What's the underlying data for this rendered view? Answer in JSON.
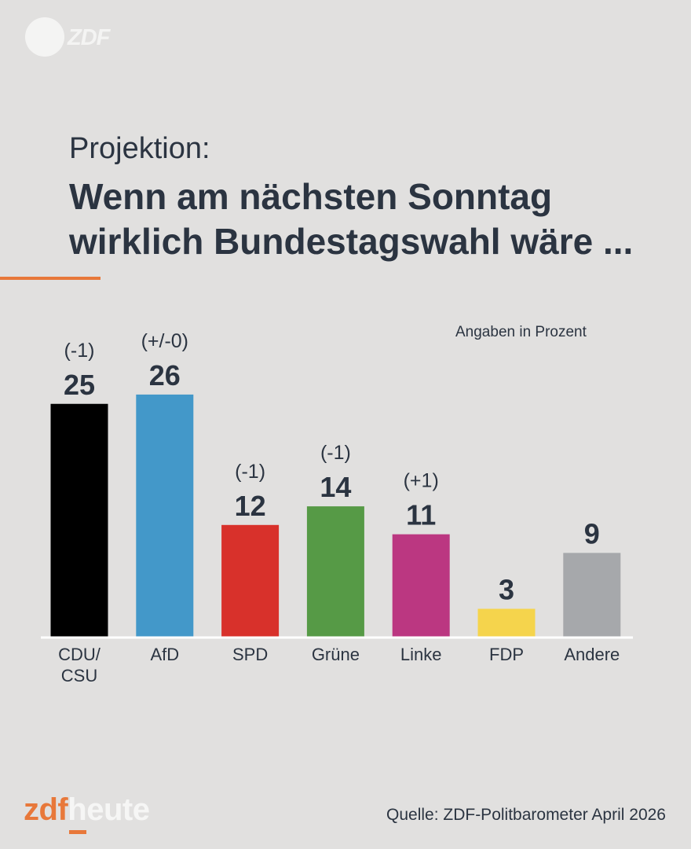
{
  "logo_top": {
    "text": "ZDF"
  },
  "header": {
    "kicker": "Projektion:",
    "headline": "Wenn am nächsten Sonntag wirklich Bundestagswahl wäre ..."
  },
  "unit_note": "Angaben in Prozent",
  "chart_data": {
    "type": "bar",
    "title": "Wenn am nächsten Sonntag wirklich Bundestagswahl wäre ...",
    "ylabel": "Angaben in Prozent",
    "ylim": [
      0,
      30
    ],
    "categories": [
      [
        "CDU/",
        "CSU"
      ],
      [
        "AfD"
      ],
      [
        "SPD"
      ],
      [
        "Grüne"
      ],
      [
        "Linke"
      ],
      [
        "FDP"
      ],
      [
        "Andere"
      ]
    ],
    "values": [
      25,
      26,
      12,
      14,
      11,
      3,
      9
    ],
    "changes": [
      "(-1)",
      "(+/-0)",
      "(-1)",
      "(-1)",
      "(+1)",
      "",
      ""
    ],
    "colors": [
      "#000000",
      "#4398c9",
      "#d8312b",
      "#569a46",
      "#bb3781",
      "#f5d44c",
      "#a6a8ab"
    ]
  },
  "footer": {
    "brand_zdf": "zdf",
    "brand_heute": "heute",
    "source": "Quelle: ZDF-Politbarometer April 2026"
  }
}
